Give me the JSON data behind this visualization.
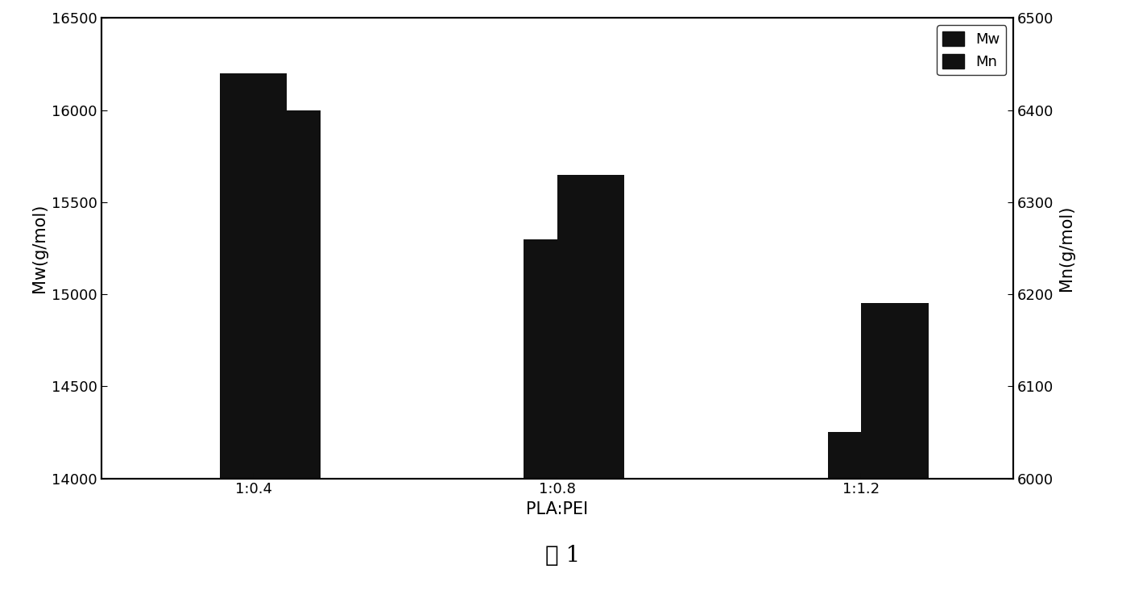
{
  "categories": [
    "1:0.4",
    "1:0.8",
    "1:1.2"
  ],
  "mw_values": [
    16200,
    15300,
    14250
  ],
  "mn_values": [
    6400,
    6330,
    6190
  ],
  "mw_ylim": [
    14000,
    16500
  ],
  "mn_ylim": [
    6000,
    6500
  ],
  "mw_yticks": [
    14000,
    14500,
    15000,
    15500,
    16000,
    16500
  ],
  "mn_yticks": [
    6000,
    6100,
    6200,
    6300,
    6400,
    6500
  ],
  "xlabel": "PLA:PEI",
  "ylabel_left": "Mw(g/mol)",
  "ylabel_right": "Mn(g/mol)",
  "bar_color": "#111111",
  "bar_width": 0.22,
  "legend_labels": [
    "Mw",
    "Mn"
  ],
  "caption": "图 1",
  "background_color": "#ffffff",
  "axis_fontsize": 15,
  "tick_fontsize": 13,
  "caption_fontsize": 20
}
